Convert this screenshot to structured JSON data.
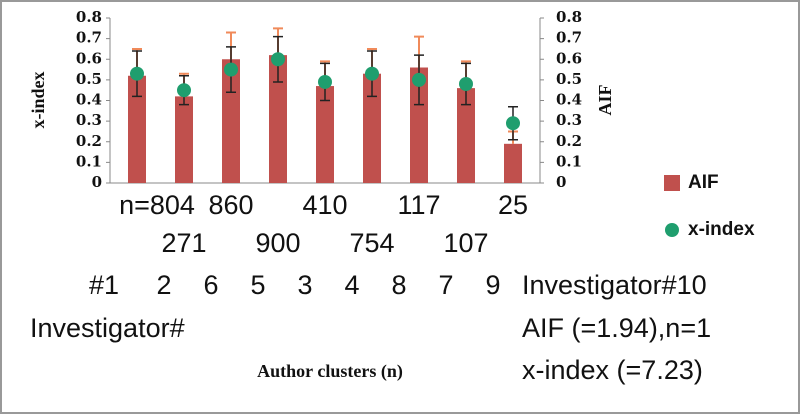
{
  "chart_data": {
    "type": "bar",
    "categories": [
      "#1",
      "2",
      "6",
      "5",
      "3",
      "4",
      "8",
      "7",
      "9"
    ],
    "n_labels": [
      "n=804",
      "271",
      "860",
      "900",
      "410",
      "754",
      "117",
      "107",
      "25"
    ],
    "series": [
      {
        "name": "AIF",
        "color": "#c0504d",
        "axis": "y2",
        "kind": "bar",
        "values": [
          0.52,
          0.42,
          0.6,
          0.62,
          0.47,
          0.53,
          0.56,
          0.46,
          0.19
        ],
        "errors": [
          0.13,
          0.11,
          0.13,
          0.13,
          0.12,
          0.12,
          0.15,
          0.13,
          0.06
        ]
      },
      {
        "name": "x-index",
        "color": "#1f9e6e",
        "kind": "dot",
        "values": [
          0.53,
          0.45,
          0.55,
          0.6,
          0.49,
          0.53,
          0.5,
          0.48,
          0.29
        ],
        "errors": [
          0.11,
          0.07,
          0.11,
          0.11,
          0.09,
          0.11,
          0.12,
          0.1,
          0.08
        ]
      }
    ],
    "y_label": "x-index",
    "y2_label": "AIF",
    "ylim": [
      0,
      0.8
    ],
    "yticks": [
      0,
      0.1,
      0.2,
      0.3,
      0.4,
      0.5,
      0.6,
      0.7,
      0.8
    ],
    "y2lim": [
      0,
      0.8
    ],
    "y2ticks": [
      0,
      0.1,
      0.2,
      0.3,
      0.4,
      0.5,
      0.6,
      0.7,
      0.8
    ],
    "investigator_label": "Investigator#",
    "investigator_10": "Investigator#10",
    "note_aif": "AIF (=1.94),n=1",
    "note_xindex": "x-index (=7.23)",
    "x_label": "Author clusters (n)"
  }
}
